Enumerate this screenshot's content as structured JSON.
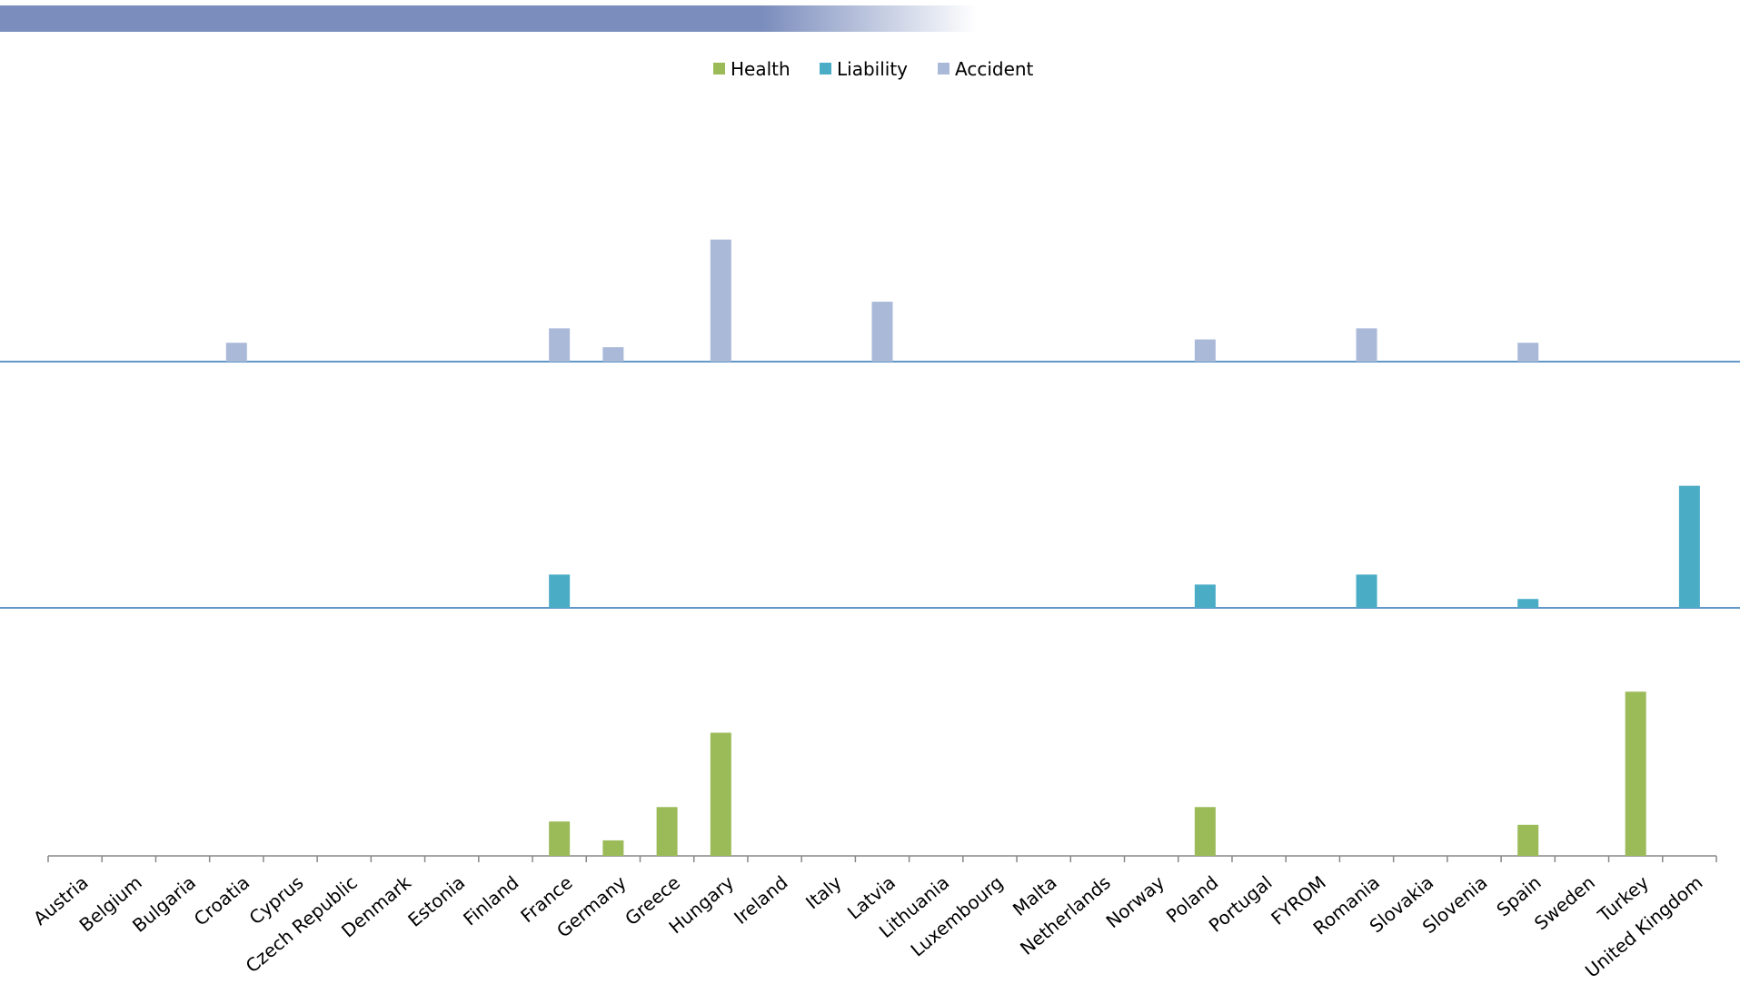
{
  "chart_data": {
    "type": "bar",
    "categories": [
      "Austria",
      "Belgium",
      "Bulgaria",
      "Croatia",
      "Cyprus",
      "Czech Republic",
      "Denmark",
      "Estonia",
      "Finland",
      "France",
      "Germany",
      "Greece",
      "Hungary",
      "Ireland",
      "Italy",
      "Latvia",
      "Lithuania",
      "Luxembourg",
      "Malta",
      "Netherlands",
      "Norway",
      "Poland",
      "Portugal",
      "FYROM",
      "Romania",
      "Slovakia",
      "Slovenia",
      "Spain",
      "Sweden",
      "Turkey",
      "United Kingdom"
    ],
    "series": [
      {
        "name": "Health",
        "color": "#9bbb59",
        "values": [
          0,
          0,
          0,
          0,
          0,
          0,
          0,
          0,
          0,
          31,
          14,
          44,
          111,
          0,
          0,
          0,
          0,
          0,
          0,
          0,
          0,
          44,
          0,
          0,
          0,
          0,
          0,
          28,
          0,
          148,
          0
        ]
      },
      {
        "name": "Liability",
        "color": "#4bacc6",
        "values": [
          0,
          0,
          0,
          0,
          0,
          0,
          0,
          0,
          0,
          30,
          0,
          0,
          0,
          0,
          0,
          0,
          0,
          0,
          0,
          0,
          0,
          21,
          0,
          0,
          30,
          0,
          0,
          8,
          0,
          0,
          110
        ]
      },
      {
        "name": "Accident",
        "color": "#abb9d9",
        "values": [
          0,
          0,
          0,
          17,
          0,
          0,
          0,
          0,
          0,
          30,
          13,
          0,
          110,
          0,
          0,
          54,
          0,
          0,
          0,
          0,
          0,
          20,
          0,
          0,
          30,
          0,
          0,
          17,
          0,
          0,
          0
        ]
      }
    ]
  }
}
